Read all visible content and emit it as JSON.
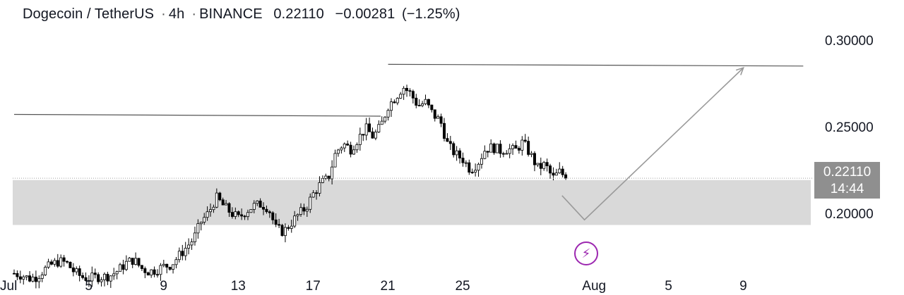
{
  "header": {
    "symbol": "Dogecoin / TetherUS",
    "interval": "4h",
    "exchange": "BINANCE",
    "price": "0.22110",
    "change": "−0.00281",
    "change_pct": "(−1.25%)"
  },
  "price_tag": {
    "price": "0.22110",
    "countdown": "14:44"
  },
  "colors": {
    "candle": "#000000",
    "zone": "#d9d9d9",
    "trendline": "#555555",
    "projection": "#9a9a9a",
    "accent": "#9c27b0",
    "tag": "#8f8f8f"
  },
  "icons": {
    "event": "lightning-icon"
  },
  "chart_data": {
    "type": "candlestick",
    "title": "Dogecoin / TetherUS · 4h · BINANCE",
    "y_ticks": [
      {
        "value": 0.3,
        "label": "0.30000"
      },
      {
        "value": 0.25,
        "label": "0.25000"
      },
      {
        "value": 0.2,
        "label": "0.20000"
      }
    ],
    "x_ticks": [
      {
        "day": 1,
        "label": "Jul"
      },
      {
        "day": 5,
        "label": "5"
      },
      {
        "day": 9,
        "label": "9"
      },
      {
        "day": 13,
        "label": "13"
      },
      {
        "day": 17,
        "label": "17"
      },
      {
        "day": 21,
        "label": "21"
      },
      {
        "day": 25,
        "label": "25"
      },
      {
        "day": 32,
        "label": "Aug"
      },
      {
        "day": 36,
        "label": "5"
      },
      {
        "day": 40,
        "label": "9"
      }
    ],
    "ylim": [
      0.16,
      0.312
    ],
    "xlim": [
      1.0,
      43.3
    ],
    "support_zone": [
      0.194,
      0.22
    ],
    "resistance_lines": [
      {
        "x1": 1.0,
        "x2": 20.6,
        "y1": 0.258,
        "y2": 0.257
      },
      {
        "x1": 21.0,
        "x2": 43.2,
        "y1": 0.287,
        "y2": 0.286
      }
    ],
    "projection": [
      {
        "x": 30.3,
        "y": 0.211
      },
      {
        "x": 31.5,
        "y": 0.197
      },
      {
        "x": 40.0,
        "y": 0.285
      }
    ],
    "last_price": 0.2211,
    "close_path": [
      [
        1.0,
        0.166
      ],
      [
        1.4,
        0.165
      ],
      [
        1.8,
        0.163
      ],
      [
        2.2,
        0.164
      ],
      [
        2.6,
        0.168
      ],
      [
        3.0,
        0.171
      ],
      [
        3.4,
        0.173
      ],
      [
        3.8,
        0.172
      ],
      [
        4.2,
        0.167
      ],
      [
        4.6,
        0.164
      ],
      [
        5.0,
        0.163
      ],
      [
        5.4,
        0.164
      ],
      [
        5.8,
        0.164
      ],
      [
        6.2,
        0.165
      ],
      [
        6.6,
        0.168
      ],
      [
        7.0,
        0.172
      ],
      [
        7.4,
        0.174
      ],
      [
        7.8,
        0.169
      ],
      [
        8.2,
        0.167
      ],
      [
        8.6,
        0.168
      ],
      [
        9.0,
        0.17
      ],
      [
        9.4,
        0.171
      ],
      [
        9.8,
        0.176
      ],
      [
        10.2,
        0.181
      ],
      [
        10.6,
        0.186
      ],
      [
        11.0,
        0.196
      ],
      [
        11.4,
        0.201
      ],
      [
        11.8,
        0.21
      ],
      [
        12.2,
        0.205
      ],
      [
        12.6,
        0.201
      ],
      [
        13.0,
        0.198
      ],
      [
        13.4,
        0.202
      ],
      [
        13.8,
        0.205
      ],
      [
        14.2,
        0.206
      ],
      [
        14.6,
        0.204
      ],
      [
        15.0,
        0.192
      ],
      [
        15.4,
        0.19
      ],
      [
        15.8,
        0.195
      ],
      [
        16.2,
        0.2
      ],
      [
        16.6,
        0.204
      ],
      [
        17.0,
        0.212
      ],
      [
        17.4,
        0.218
      ],
      [
        17.8,
        0.221
      ],
      [
        18.2,
        0.236
      ],
      [
        18.6,
        0.241
      ],
      [
        19.0,
        0.238
      ],
      [
        19.4,
        0.244
      ],
      [
        19.8,
        0.25
      ],
      [
        20.2,
        0.245
      ],
      [
        20.6,
        0.251
      ],
      [
        21.0,
        0.263
      ],
      [
        21.4,
        0.268
      ],
      [
        21.8,
        0.274
      ],
      [
        22.2,
        0.27
      ],
      [
        22.6,
        0.263
      ],
      [
        23.0,
        0.265
      ],
      [
        23.4,
        0.258
      ],
      [
        23.8,
        0.254
      ],
      [
        24.2,
        0.24
      ],
      [
        24.6,
        0.235
      ],
      [
        25.0,
        0.232
      ],
      [
        25.4,
        0.226
      ],
      [
        25.8,
        0.23
      ],
      [
        26.2,
        0.238
      ],
      [
        26.6,
        0.239
      ],
      [
        27.0,
        0.237
      ],
      [
        27.4,
        0.238
      ],
      [
        27.8,
        0.237
      ],
      [
        28.2,
        0.242
      ],
      [
        28.6,
        0.235
      ],
      [
        29.0,
        0.227
      ],
      [
        29.4,
        0.229
      ],
      [
        29.8,
        0.221
      ],
      [
        30.2,
        0.225
      ],
      [
        30.5,
        0.2211
      ]
    ]
  }
}
